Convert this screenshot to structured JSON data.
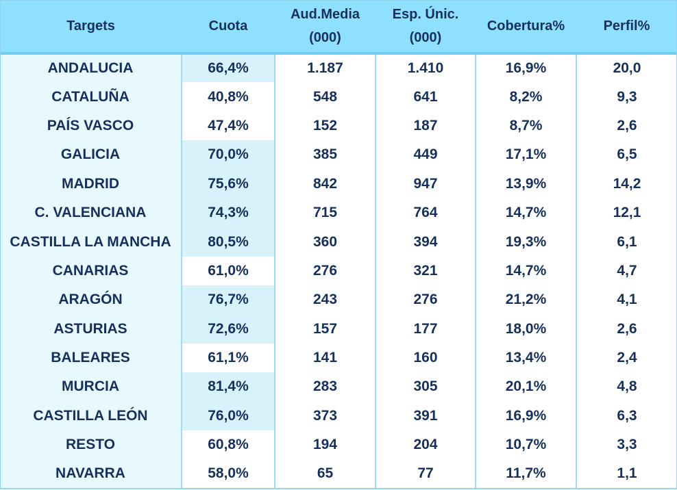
{
  "headers": {
    "targets": "Targets",
    "cuota": "Cuota",
    "aud_media_1": "Aud.Media",
    "aud_media_2": "(000)",
    "esp_unic_1": "Esp. Únic.",
    "esp_unic_2": "(000)",
    "cobertura": "Cobertura%",
    "perfil": "Perfil%"
  },
  "rows": [
    {
      "target": "ANDALUCIA",
      "cuota": "66,4%",
      "aud": "1.187",
      "esp": "1.410",
      "cob": "16,9%",
      "perfil": "20,0"
    },
    {
      "target": "CATALUÑA",
      "cuota": "40,8%",
      "aud": "548",
      "esp": "641",
      "cob": "8,2%",
      "perfil": "9,3"
    },
    {
      "target": "PAÍS VASCO",
      "cuota": "47,4%",
      "aud": "152",
      "esp": "187",
      "cob": "8,7%",
      "perfil": "2,6"
    },
    {
      "target": "GALICIA",
      "cuota": "70,0%",
      "aud": "385",
      "esp": "449",
      "cob": "17,1%",
      "perfil": "6,5"
    },
    {
      "target": "MADRID",
      "cuota": "75,6%",
      "aud": "842",
      "esp": "947",
      "cob": "13,9%",
      "perfil": "14,2"
    },
    {
      "target": "C. VALENCIANA",
      "cuota": "74,3%",
      "aud": "715",
      "esp": "764",
      "cob": "14,7%",
      "perfil": "12,1"
    },
    {
      "target": "CASTILLA LA MANCHA",
      "cuota": "80,5%",
      "aud": "360",
      "esp": "394",
      "cob": "19,3%",
      "perfil": "6,1"
    },
    {
      "target": "CANARIAS",
      "cuota": "61,0%",
      "aud": "276",
      "esp": "321",
      "cob": "14,7%",
      "perfil": "4,7"
    },
    {
      "target": "ARAGÓN",
      "cuota": "76,7%",
      "aud": "243",
      "esp": "276",
      "cob": "21,2%",
      "perfil": "4,1"
    },
    {
      "target": "ASTURIAS",
      "cuota": "72,6%",
      "aud": "157",
      "esp": "177",
      "cob": "18,0%",
      "perfil": "2,6"
    },
    {
      "target": "BALEARES",
      "cuota": "61,1%",
      "aud": "141",
      "esp": "160",
      "cob": "13,4%",
      "perfil": "2,4"
    },
    {
      "target": "MURCIA",
      "cuota": "81,4%",
      "aud": "283",
      "esp": "305",
      "cob": "20,1%",
      "perfil": "4,8"
    },
    {
      "target": "CASTILLA LEÓN",
      "cuota": "76,0%",
      "aud": "373",
      "esp": "391",
      "cob": "16,9%",
      "perfil": "6,3"
    },
    {
      "target": "RESTO",
      "cuota": "60,8%",
      "aud": "194",
      "esp": "204",
      "cob": "10,7%",
      "perfil": "3,3"
    },
    {
      "target": "NAVARRA",
      "cuota": "58,0%",
      "aud": "65",
      "esp": "77",
      "cob": "11,7%",
      "perfil": "1,1"
    }
  ],
  "highlighted_cuota_rows": [
    0,
    3,
    4,
    5,
    6,
    8,
    9,
    11,
    12
  ],
  "colors": {
    "header_bg": "#8fe0ff",
    "label_col_bg": "#e8f8ff",
    "cuota_highlight_bg": "#d7f2fb",
    "text": "#16305b",
    "grid": "#9ddcf4"
  }
}
